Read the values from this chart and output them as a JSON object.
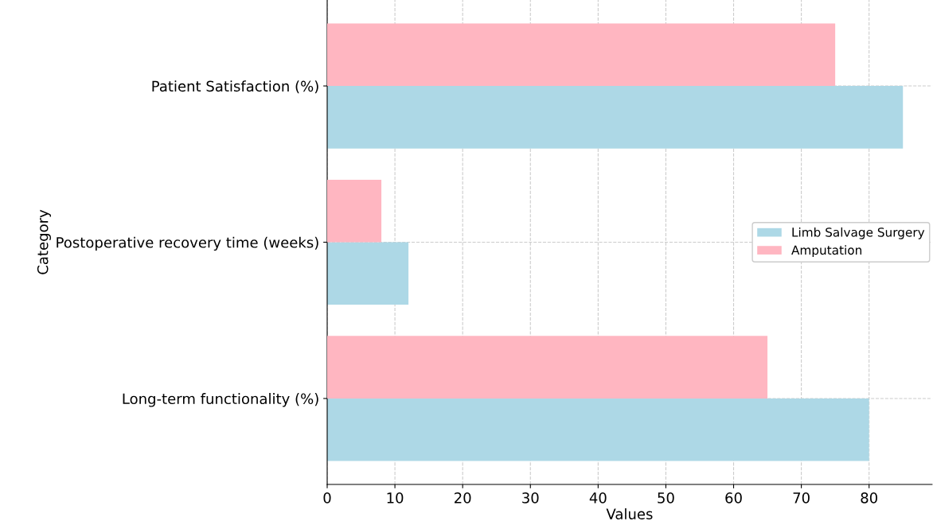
{
  "chart_data": {
    "type": "bar",
    "orientation": "horizontal",
    "categories": [
      "Patient Satisfaction (%)",
      "Postoperative recovery time (weeks)",
      "Long-term functionality (%)"
    ],
    "series": [
      {
        "name": "Limb Salvage Surgery",
        "color": "#add8e6",
        "values": [
          85,
          12,
          80
        ]
      },
      {
        "name": "Amputation",
        "color": "#ffb6c1",
        "values": [
          75,
          8,
          65
        ]
      }
    ],
    "xlabel": "Values",
    "ylabel": "Category",
    "xlim": [
      0,
      89.3
    ],
    "xticks": [
      0,
      10,
      20,
      30,
      40,
      50,
      60,
      70,
      80
    ],
    "grid": true,
    "legend": "right"
  }
}
